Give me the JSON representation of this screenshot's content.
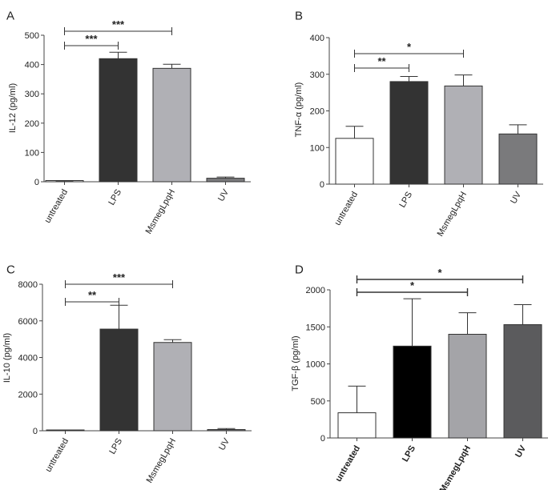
{
  "chart_data": [
    {
      "panel": "A",
      "type": "bar",
      "categories": [
        "untreated",
        "LPS",
        "MsmegLpqH",
        "UV"
      ],
      "values": [
        2,
        420,
        387,
        12
      ],
      "errors": [
        1,
        22,
        14,
        4
      ],
      "ylabel": "IL-12  (pg/ml)",
      "ylim": [
        0,
        500
      ],
      "yticks": [
        "0",
        "100",
        "200",
        "300",
        "400",
        "500"
      ],
      "colors": [
        "#ffffff",
        "#333333",
        "#b0b0b5",
        "#7a7a7c"
      ],
      "significance": [
        {
          "from": 0,
          "to": 1,
          "label": "***"
        },
        {
          "from": 0,
          "to": 2,
          "label": "***"
        }
      ]
    },
    {
      "panel": "B",
      "type": "bar",
      "categories": [
        "untreated",
        "LPS",
        "MsmegLpqH",
        "UV"
      ],
      "values": [
        125,
        280,
        268,
        137
      ],
      "errors": [
        33,
        14,
        30,
        25
      ],
      "ylabel": "TNF-α (pg/ml)",
      "ylim": [
        0,
        400
      ],
      "yticks": [
        "0",
        "100",
        "200",
        "300",
        "400"
      ],
      "colors": [
        "#ffffff",
        "#333333",
        "#b0b0b5",
        "#7a7a7c"
      ],
      "significance": [
        {
          "from": 0,
          "to": 1,
          "label": "**"
        },
        {
          "from": 0,
          "to": 2,
          "label": "*"
        }
      ]
    },
    {
      "panel": "C",
      "type": "bar",
      "categories": [
        "untreated",
        "LPS",
        "MsmegLpqH",
        "UV"
      ],
      "values": [
        0,
        5550,
        4820,
        60
      ],
      "errors": [
        0,
        1300,
        150,
        60
      ],
      "ylabel": "IL-10 (pg/ml)",
      "ylim": [
        0,
        8000
      ],
      "yticks": [
        "0",
        "2000",
        "4000",
        "6000",
        "8000"
      ],
      "colors": [
        "#ffffff",
        "#333333",
        "#b0b0b5",
        "#7a7a7c"
      ],
      "significance": [
        {
          "from": 0,
          "to": 1,
          "label": "**"
        },
        {
          "from": 0,
          "to": 2,
          "label": "***"
        }
      ]
    },
    {
      "panel": "D",
      "type": "bar",
      "categories": [
        "untreated",
        "LPS",
        "MsmegLpqH",
        "UV"
      ],
      "values": [
        340,
        1240,
        1400,
        1530
      ],
      "errors": [
        360,
        640,
        290,
        270
      ],
      "ylabel": "TGF-β (pg/ml)",
      "ylim": [
        0,
        2000
      ],
      "yticks": [
        "0",
        "500",
        "1000",
        "1500",
        "2000"
      ],
      "colors": [
        "#ffffff",
        "#000000",
        "#a4a4a8",
        "#5b5b5d"
      ],
      "significance": [
        {
          "from": 0,
          "to": 2,
          "label": "*"
        },
        {
          "from": 0,
          "to": 3,
          "label": "*"
        }
      ]
    }
  ]
}
